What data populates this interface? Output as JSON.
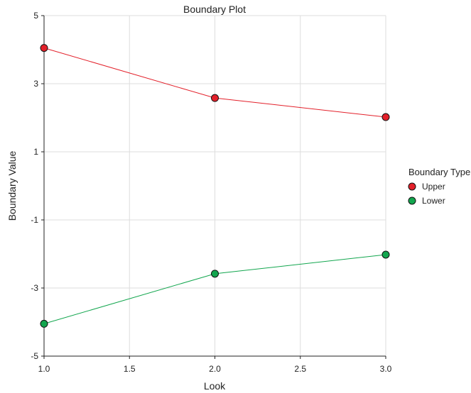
{
  "chart_data": {
    "type": "line",
    "title": "Boundary Plot",
    "xlabel": "Look",
    "ylabel": "Boundary Value",
    "xlim": [
      1.0,
      3.0
    ],
    "ylim": [
      -5,
      5
    ],
    "xticks": [
      "1.0",
      "1.5",
      "2.0",
      "2.5",
      "3.0"
    ],
    "xtick_values": [
      1.0,
      1.5,
      2.0,
      2.5,
      3.0
    ],
    "yticks": [
      "5",
      "3",
      "1",
      "-1",
      "-3",
      "-5"
    ],
    "ytick_values": [
      5,
      3,
      1,
      -1,
      -3,
      -5
    ],
    "grid": true,
    "legend_title": "Boundary Type",
    "legend_position": "right",
    "x": [
      1.0,
      2.0,
      3.0
    ],
    "series": [
      {
        "name": "Upper",
        "values": [
          4.05,
          2.58,
          2.02
        ],
        "color": "#e3202a"
      },
      {
        "name": "Lower",
        "values": [
          -4.05,
          -2.58,
          -2.02
        ],
        "color": "#12a64e"
      }
    ]
  }
}
